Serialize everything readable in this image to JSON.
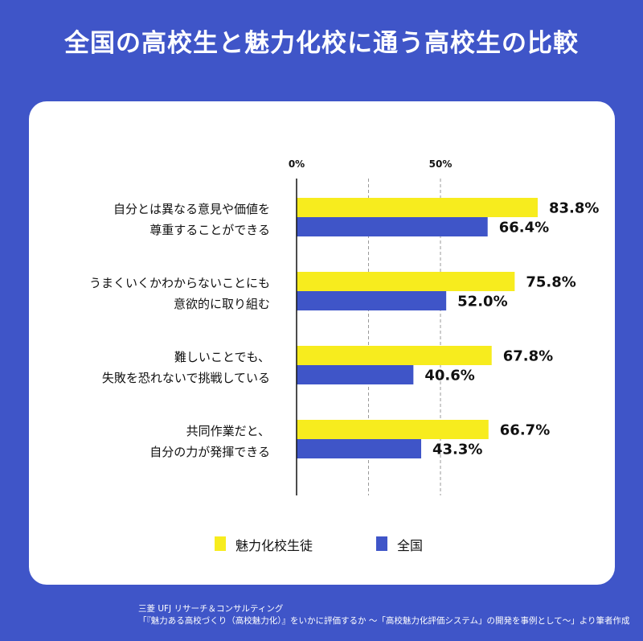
{
  "title": "全国の高校生と魅力化校に通う高校生の比較",
  "colors": {
    "background": "#3F55C8",
    "attractive_school": "#F7EC1E",
    "national": "#3F55C8"
  },
  "chart_data": {
    "type": "bar",
    "orientation": "horizontal",
    "categories": [
      [
        "自分とは異なる意見や価値を",
        "尊重することができる"
      ],
      [
        "うまくいくかわからないことにも",
        "意欲的に取り組む"
      ],
      [
        "難しいことでも、",
        "失敗を恐れないで挑戦している"
      ],
      [
        "共同作業だと、",
        "自分の力が発揮できる"
      ]
    ],
    "series": [
      {
        "name": "魅力化校生徒",
        "values": [
          83.8,
          75.8,
          67.8,
          66.7
        ],
        "labels": [
          "83.8%",
          "75.8%",
          "67.8%",
          "66.7%"
        ]
      },
      {
        "name": "全国",
        "values": [
          66.4,
          52.0,
          40.6,
          43.3
        ],
        "labels": [
          "66.4%",
          "52.0%",
          "40.6%",
          "43.3%"
        ]
      }
    ],
    "tick_labels": [
      "0%",
      "50%"
    ],
    "xlim": [
      0,
      100
    ],
    "grid": true,
    "legend_position": "bottom"
  },
  "source": {
    "line1": "三菱 UFJ リサーチ＆コンサルティング",
    "line2": "「『魅力ある高校づくり（高校魅力化）』をいかに評価するか 〜「高校魅力化評価システム」の開発を事例として〜」より筆者作成"
  }
}
